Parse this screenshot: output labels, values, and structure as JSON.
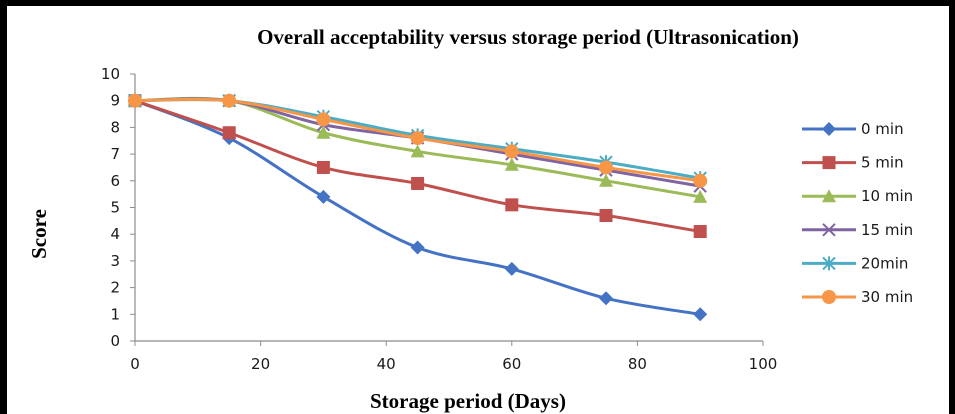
{
  "chart_data": {
    "type": "line",
    "title": "Overall acceptability versus storage period (Ultrasonication)",
    "xlabel": "Storage period (Days)",
    "ylabel": "Score",
    "xlim": [
      0,
      100
    ],
    "ylim": [
      0,
      10
    ],
    "xticks": [
      0,
      20,
      40,
      60,
      80,
      100
    ],
    "yticks": [
      0,
      1,
      2,
      3,
      4,
      5,
      6,
      7,
      8,
      9,
      10
    ],
    "grid": false,
    "legend_position": "right",
    "x": [
      0,
      15,
      30,
      45,
      60,
      75,
      90
    ],
    "series": [
      {
        "name": "0 min",
        "color": "#4472C4",
        "marker": "diamond",
        "values": [
          9.0,
          7.6,
          5.4,
          3.5,
          2.7,
          1.6,
          1.0
        ]
      },
      {
        "name": "5 min",
        "color": "#C0504D",
        "marker": "square",
        "values": [
          9.0,
          7.8,
          6.5,
          5.9,
          5.1,
          4.7,
          4.1
        ]
      },
      {
        "name": "10 min",
        "color": "#9BBB59",
        "marker": "triangle",
        "values": [
          9.0,
          9.0,
          7.8,
          7.1,
          6.6,
          6.0,
          5.4
        ]
      },
      {
        "name": "15 min",
        "color": "#8064A2",
        "marker": "x",
        "values": [
          9.0,
          9.0,
          8.1,
          7.6,
          7.0,
          6.4,
          5.8
        ]
      },
      {
        "name": "20min",
        "color": "#4BACC6",
        "marker": "star",
        "values": [
          9.0,
          9.0,
          8.4,
          7.7,
          7.2,
          6.7,
          6.1
        ]
      },
      {
        "name": "30 min",
        "color": "#F79646",
        "marker": "circle",
        "values": [
          9.0,
          9.0,
          8.3,
          7.6,
          7.1,
          6.5,
          6.0
        ]
      }
    ]
  }
}
